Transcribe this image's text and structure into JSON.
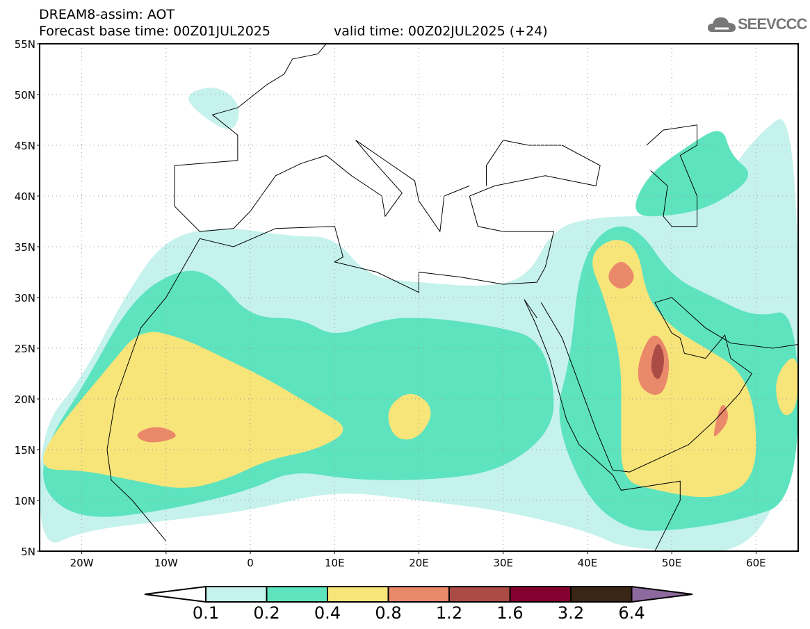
{
  "header": {
    "title": "DREAM8-assim: AOT",
    "base_time": "Forecast base time: 00Z01JUL2025",
    "valid_time": "valid time: 00Z02JUL2025 (+24)"
  },
  "logo": {
    "text": "SEEVCCC",
    "icon": "cloud-icon"
  },
  "axes": {
    "lat_labels": [
      "55N",
      "50N",
      "45N",
      "40N",
      "35N",
      "30N",
      "25N",
      "20N",
      "15N",
      "10N",
      "5N"
    ],
    "lat_values": [
      55,
      50,
      45,
      40,
      35,
      30,
      25,
      20,
      15,
      10,
      5
    ],
    "lon_labels": [
      "20W",
      "10W",
      "0",
      "10E",
      "20E",
      "30E",
      "40E",
      "50E",
      "60E"
    ],
    "lon_values": [
      -20,
      -10,
      0,
      10,
      20,
      30,
      40,
      50,
      60
    ],
    "lon_range": [
      -25,
      65
    ],
    "lat_range": [
      5,
      55
    ]
  },
  "colorbar": {
    "labels": [
      "0.1",
      "0.2",
      "0.4",
      "0.8",
      "1.2",
      "1.6",
      "3.2",
      "6.4"
    ],
    "colors": [
      "#ffffff",
      "#c5f2ec",
      "#5ee3bf",
      "#f8e57a",
      "#ea896a",
      "#ab4b45",
      "#84002e",
      "#3a2615",
      "#8c6a9e"
    ]
  }
}
